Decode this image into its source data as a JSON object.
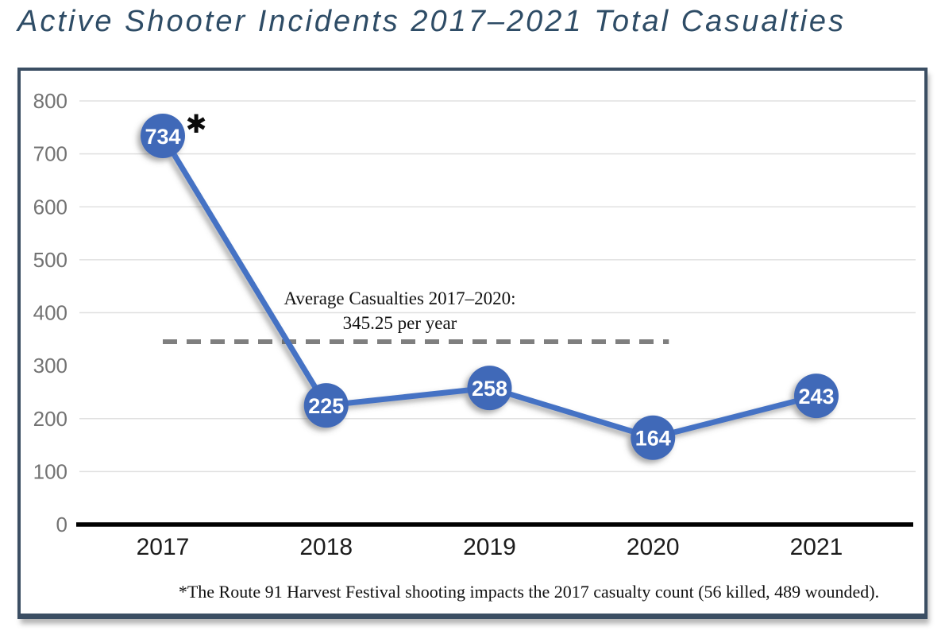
{
  "title": "Active Shooter Incidents 2017–2021 Total Casualties",
  "chart_data": {
    "type": "line",
    "title": "Active Shooter Incidents 2017–2021 Total Casualties",
    "categories": [
      "2017",
      "2018",
      "2019",
      "2020",
      "2021"
    ],
    "series": [
      {
        "name": "Total Casualties",
        "values": [
          734,
          225,
          258,
          164,
          243
        ]
      }
    ],
    "xlabel": "",
    "ylabel": "",
    "ylim": [
      0,
      800
    ],
    "ytick_step": 100,
    "gridlines_shown_at": [
      100,
      200,
      400,
      500,
      600,
      700,
      800
    ],
    "grid": true,
    "legend": "none",
    "data_labels": "on-marker",
    "average_line": {
      "value": 345.25,
      "span_categories": [
        "2017",
        "2020"
      ],
      "style": "dashed",
      "label_line1": "Average Casualties 2017–2020:",
      "label_line2": "345.25 per year"
    },
    "point_annotation": {
      "category": "2017",
      "symbol": "✱"
    },
    "footnote": "*The Route 91 Harvest Festival shooting impacts the 2017 casualty count (56 killed, 489 wounded).",
    "colors": {
      "line": "#4472c4",
      "marker": "#4169b8",
      "marker_text": "#ffffff",
      "dashed_line": "#7f7f7f",
      "gridline": "#e0e0e0",
      "axis": "#000000",
      "tick_text": "#737373",
      "year_text": "#1c1c1c",
      "title_text": "#2e4c66",
      "border": "#3b4e63",
      "annotation_text": "#111111"
    }
  }
}
